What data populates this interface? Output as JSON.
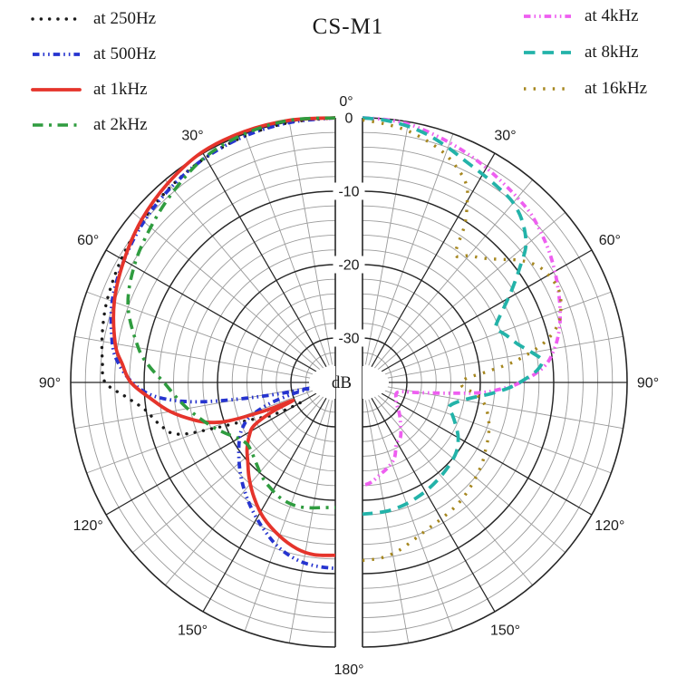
{
  "title": "CS-M1",
  "legend": {
    "left": [
      {
        "label": "at 250Hz",
        "series": "250Hz"
      },
      {
        "label": "at 500Hz",
        "series": "500Hz"
      },
      {
        "label": "at 1kHz",
        "series": "1kHz"
      },
      {
        "label": "at 2kHz",
        "series": "2kHz"
      }
    ],
    "right": [
      {
        "label": "at 4kHz",
        "series": "4kHz"
      },
      {
        "label": "at 8kHz",
        "series": "8kHz"
      },
      {
        "label": "at 16kHz",
        "series": "16kHz"
      }
    ]
  },
  "axes": {
    "top_angle_label": "0°",
    "bottom_angle_label": "180°",
    "angle_labels": [
      "30°",
      "60°",
      "90°",
      "120°",
      "150°"
    ],
    "angle_values_deg": [
      30,
      60,
      90,
      120,
      150
    ],
    "radial_tick_labels": [
      "0",
      "-10",
      "-20",
      "-30"
    ],
    "radial_tick_values_db": [
      0,
      -10,
      -20,
      -30
    ],
    "radial_axis_label": "dB"
  },
  "colors": {
    "grid_minor": "#9a9a9a",
    "grid_major": "#262626",
    "text": "#1b1b1b",
    "background": "#ffffff"
  },
  "chart_data": {
    "type": "polar-line",
    "title": "CS-M1",
    "angular_unit": "degrees",
    "radial_unit": "dB",
    "radial_range_db": [
      0,
      -36
    ],
    "radial_grid_minor_step_db": 2,
    "radial_grid_major_step_db": 10,
    "angular_grid_minor_step_deg": 10,
    "angular_grid_major_step_deg": 30,
    "layout_note": "two mirrored half-circle polar plots sharing a central dB axis; left half = low frequencies, right half = high frequencies",
    "left_half_series": [
      "250Hz",
      "500Hz",
      "1kHz",
      "2kHz"
    ],
    "right_half_series": [
      "4kHz",
      "8kHz",
      "16kHz"
    ],
    "series": [
      {
        "name": "250Hz",
        "label": "at 250Hz",
        "side": "left",
        "color": "#1b1b1b",
        "line_style": "dotted-round",
        "points_deg_db": [
          [
            0,
            0
          ],
          [
            10,
            -0.1
          ],
          [
            20,
            -0.3
          ],
          [
            30,
            -0.7
          ],
          [
            40,
            -1.2
          ],
          [
            50,
            -1.8
          ],
          [
            60,
            -2.4
          ],
          [
            70,
            -3.0
          ],
          [
            78,
            -3.6
          ],
          [
            85,
            -4.2
          ],
          [
            90,
            -4.7
          ],
          [
            94,
            -7.5
          ],
          [
            98,
            -9.8
          ],
          [
            102,
            -11.0
          ],
          [
            105,
            -11.9
          ],
          [
            107,
            -12.6
          ],
          [
            109,
            -14.5
          ],
          [
            111,
            -19.0
          ],
          [
            113,
            -22.5
          ],
          [
            115,
            -24.5
          ],
          [
            117,
            -26.0
          ],
          [
            119,
            -28.5
          ],
          [
            120,
            -30.5
          ]
        ]
      },
      {
        "name": "500Hz",
        "label": "at 500Hz",
        "side": "left",
        "color": "#2634cf",
        "line_style": "dash-dot-dot",
        "points_deg_db": [
          [
            0,
            0
          ],
          [
            10,
            -0.1
          ],
          [
            20,
            -0.3
          ],
          [
            30,
            -0.7
          ],
          [
            40,
            -1.3
          ],
          [
            50,
            -2.0
          ],
          [
            60,
            -2.8
          ],
          [
            70,
            -3.7
          ],
          [
            80,
            -5.2
          ],
          [
            85,
            -6.4
          ],
          [
            90,
            -8.4
          ],
          [
            94,
            -11.0
          ],
          [
            97,
            -15.0
          ],
          [
            99,
            -20.0
          ],
          [
            101,
            -27.0
          ],
          [
            103,
            -32.5
          ],
          [
            105,
            -30.0
          ],
          [
            108,
            -26.5
          ],
          [
            112,
            -23.5
          ],
          [
            116,
            -22.0
          ],
          [
            120,
            -21.0
          ],
          [
            126,
            -19.8
          ],
          [
            133,
            -18.3
          ],
          [
            140,
            -16.8
          ],
          [
            147,
            -15.3
          ],
          [
            154,
            -13.8
          ],
          [
            161,
            -12.3
          ],
          [
            168,
            -11.3
          ],
          [
            174,
            -10.9
          ],
          [
            180,
            -10.7
          ]
        ]
      },
      {
        "name": "1kHz",
        "label": "at 1kHz",
        "side": "left",
        "color": "#e5342b",
        "line_style": "solid",
        "points_deg_db": [
          [
            0,
            0
          ],
          [
            10,
            0.2
          ],
          [
            20,
            0.3
          ],
          [
            30,
            0.2
          ],
          [
            40,
            -0.6
          ],
          [
            50,
            -1.6
          ],
          [
            60,
            -2.8
          ],
          [
            70,
            -4.0
          ],
          [
            80,
            -5.6
          ],
          [
            85,
            -6.9
          ],
          [
            90,
            -8.2
          ],
          [
            95,
            -10.8
          ],
          [
            100,
            -13.2
          ],
          [
            105,
            -16.2
          ],
          [
            108,
            -18.4
          ],
          [
            110,
            -21.0
          ],
          [
            112,
            -26.0
          ],
          [
            113,
            -29.8
          ],
          [
            115,
            -26.5
          ],
          [
            118,
            -23.5
          ],
          [
            122,
            -22.2
          ],
          [
            127,
            -21.0
          ],
          [
            132,
            -20.0
          ],
          [
            138,
            -18.5
          ],
          [
            145,
            -16.8
          ],
          [
            152,
            -15.2
          ],
          [
            160,
            -13.8
          ],
          [
            167,
            -12.8
          ],
          [
            173,
            -12.4
          ],
          [
            180,
            -12.5
          ]
        ]
      },
      {
        "name": "2kHz",
        "label": "at 2kHz",
        "side": "left",
        "color": "#2f9c3f",
        "line_style": "dash-dot",
        "points_deg_db": [
          [
            0,
            0
          ],
          [
            10,
            0.2
          ],
          [
            20,
            0.0
          ],
          [
            30,
            -0.6
          ],
          [
            40,
            -1.9
          ],
          [
            50,
            -3.2
          ],
          [
            60,
            -4.4
          ],
          [
            70,
            -6.0
          ],
          [
            80,
            -8.8
          ],
          [
            85,
            -10.6
          ],
          [
            90,
            -12.7
          ],
          [
            95,
            -14.2
          ],
          [
            100,
            -15.6
          ],
          [
            105,
            -17.0
          ],
          [
            110,
            -18.3
          ],
          [
            115,
            -19.6
          ],
          [
            120,
            -20.8
          ],
          [
            125,
            -21.4
          ],
          [
            130,
            -21.2
          ],
          [
            136,
            -20.6
          ],
          [
            142,
            -19.8
          ],
          [
            148,
            -19.2
          ],
          [
            155,
            -18.6
          ],
          [
            162,
            -18.4
          ],
          [
            168,
            -18.6
          ],
          [
            174,
            -18.9
          ],
          [
            180,
            -19.0
          ]
        ]
      },
      {
        "name": "4kHz",
        "label": "at 4kHz",
        "side": "right",
        "color": "#ee5ff0",
        "line_style": "dash-dot-dot",
        "points_deg_db": [
          [
            0,
            0
          ],
          [
            5,
            -0.1
          ],
          [
            10,
            -0.3
          ],
          [
            15,
            -0.8
          ],
          [
            20,
            -1.3
          ],
          [
            25,
            -1.8
          ],
          [
            30,
            -2.3
          ],
          [
            35,
            -2.8
          ],
          [
            40,
            -3.2
          ],
          [
            45,
            -3.6
          ],
          [
            50,
            -4.3
          ],
          [
            55,
            -5.0
          ],
          [
            60,
            -5.8
          ],
          [
            65,
            -6.6
          ],
          [
            70,
            -7.4
          ],
          [
            75,
            -8.3
          ],
          [
            80,
            -9.5
          ],
          [
            85,
            -11.2
          ],
          [
            90,
            -14.5
          ],
          [
            93,
            -17.5
          ],
          [
            95,
            -20.0
          ],
          [
            97,
            -24.0
          ],
          [
            100,
            -28.0
          ],
          [
            104,
            -30.8
          ],
          [
            110,
            -31.2
          ],
          [
            116,
            -30.9
          ],
          [
            122,
            -30.6
          ],
          [
            130,
            -29.5
          ],
          [
            138,
            -28.3
          ],
          [
            145,
            -27.0
          ],
          [
            151,
            -26.5
          ],
          [
            157,
            -24.9
          ],
          [
            163,
            -24.0
          ],
          [
            169,
            -23.3
          ],
          [
            175,
            -22.4
          ],
          [
            180,
            -22.0
          ]
        ]
      },
      {
        "name": "8kHz",
        "label": "at 8kHz",
        "side": "right",
        "color": "#23b3a9",
        "line_style": "dashed",
        "points_deg_db": [
          [
            0,
            0
          ],
          [
            5,
            -0.2
          ],
          [
            10,
            -0.6
          ],
          [
            15,
            -1.2
          ],
          [
            20,
            -2.0
          ],
          [
            25,
            -2.8
          ],
          [
            30,
            -3.3
          ],
          [
            35,
            -3.7
          ],
          [
            40,
            -4.1
          ],
          [
            45,
            -5.2
          ],
          [
            50,
            -7.0
          ],
          [
            54,
            -9.6
          ],
          [
            58,
            -12.0
          ],
          [
            62,
            -14.2
          ],
          [
            66,
            -16.0
          ],
          [
            68,
            -16.4
          ],
          [
            72,
            -15.4
          ],
          [
            76,
            -14.3
          ],
          [
            80,
            -12.6
          ],
          [
            83,
            -11.4
          ],
          [
            86,
            -12.2
          ],
          [
            89,
            -14.0
          ],
          [
            92,
            -16.0
          ],
          [
            95,
            -18.5
          ],
          [
            98,
            -21.0
          ],
          [
            102,
            -23.0
          ],
          [
            106,
            -23.8
          ],
          [
            110,
            -23.0
          ],
          [
            115,
            -22.0
          ],
          [
            120,
            -21.0
          ],
          [
            126,
            -20.2
          ],
          [
            132,
            -19.8
          ],
          [
            140,
            -19.4
          ],
          [
            148,
            -19.0
          ],
          [
            155,
            -18.7
          ],
          [
            162,
            -18.4
          ],
          [
            170,
            -18.2
          ],
          [
            180,
            -18.1
          ]
        ]
      },
      {
        "name": "16kHz",
        "label": "at 16kHz",
        "side": "right",
        "color": "#a6871f",
        "line_style": "dotted-square",
        "points_deg_db": [
          [
            0,
            -0.3
          ],
          [
            5,
            -0.7
          ],
          [
            10,
            -1.2
          ],
          [
            15,
            -2.0
          ],
          [
            20,
            -3.0
          ],
          [
            25,
            -4.5
          ],
          [
            28,
            -5.8
          ],
          [
            30,
            -7.5
          ],
          [
            33,
            -10.5
          ],
          [
            36,
            -14.5
          ],
          [
            40,
            -13.5
          ],
          [
            44,
            -12.5
          ],
          [
            48,
            -11.0
          ],
          [
            52,
            -9.0
          ],
          [
            56,
            -7.5
          ],
          [
            60,
            -6.8
          ],
          [
            65,
            -6.5
          ],
          [
            70,
            -7.3
          ],
          [
            74,
            -8.5
          ],
          [
            78,
            -11.0
          ],
          [
            82,
            -15.0
          ],
          [
            85,
            -19.0
          ],
          [
            88,
            -22.0
          ],
          [
            92,
            -22.5
          ],
          [
            96,
            -20.5
          ],
          [
            100,
            -19.2
          ],
          [
            106,
            -18.2
          ],
          [
            112,
            -17.5
          ],
          [
            118,
            -17.0
          ],
          [
            125,
            -16.3
          ],
          [
            134,
            -15.6
          ],
          [
            142,
            -15.0
          ],
          [
            150,
            -14.6
          ],
          [
            156,
            -14.2
          ],
          [
            162,
            -13.5
          ],
          [
            168,
            -12.6
          ],
          [
            174,
            -12.0
          ],
          [
            180,
            -11.8
          ]
        ]
      }
    ]
  }
}
